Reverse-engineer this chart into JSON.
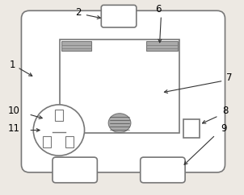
{
  "bg_color": "#ede9e3",
  "line_color": "#777777",
  "dark_color": "#333333",
  "fill_color": "#ffffff",
  "gray_color": "#aaaaaa",
  "figsize": [
    3.02,
    2.42
  ],
  "dpi": 100
}
